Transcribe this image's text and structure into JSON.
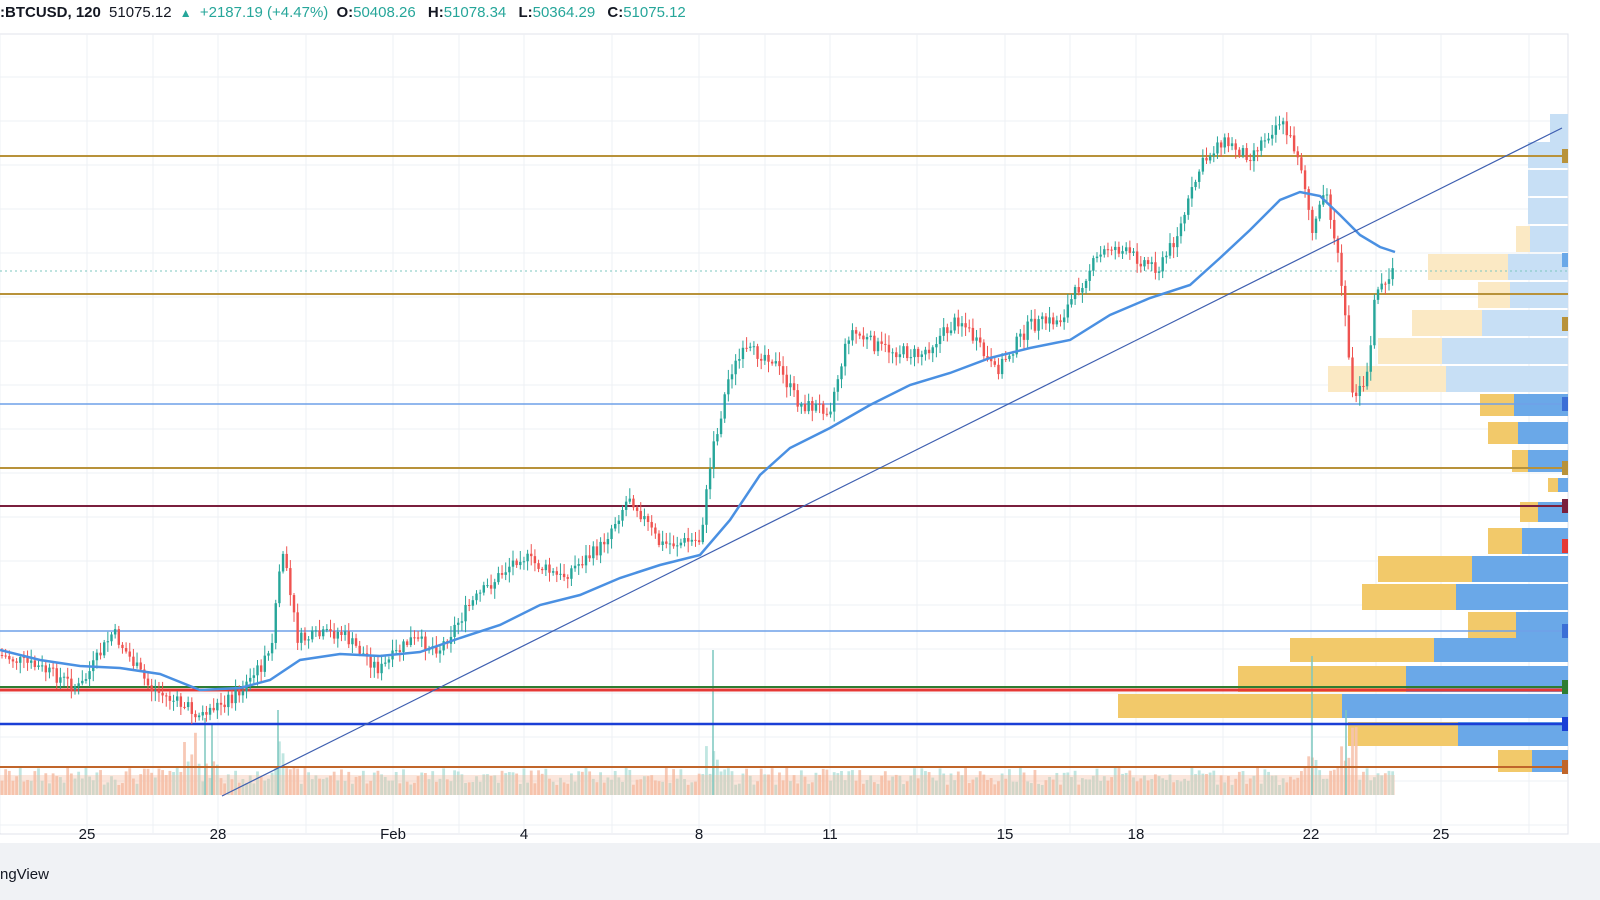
{
  "header": {
    "symbol": ":BTCUSD, 120",
    "price": "51075.12",
    "change": "+2187.19 (+4.47%)",
    "open_label": "O:",
    "open": "50408.26",
    "high_label": "H:",
    "high": "51078.34",
    "low_label": "L:",
    "low": "50364.29",
    "close_label": "C:",
    "close": "51075.12"
  },
  "brand": "ngView",
  "colors": {
    "up": "#26a69a",
    "down": "#ef5350",
    "ma": "#4a90e2",
    "gold_level": "#b8923a",
    "blue_level": "#6fa0e8",
    "maroon_level": "#7a1f3d",
    "red_level": "#e53935",
    "green_level": "#2e7d32",
    "dark_blue_level": "#1a3fd6",
    "orange_level": "#c0652a",
    "vp_gold": "#f2c96a",
    "vp_blue": "#6aa8e8",
    "volume": "#f4b89a"
  },
  "chart_data": {
    "type": "candlestick",
    "title": "",
    "x_ticks": [
      "25",
      "28",
      "Feb",
      "4",
      "8",
      "11",
      "15",
      "18",
      "22",
      "25"
    ],
    "y_axis_labels": [],
    "grid": true,
    "overlays": [
      "moving-average",
      "trendline",
      "horizontal-levels",
      "volume-profile",
      "volume-bars"
    ]
  }
}
